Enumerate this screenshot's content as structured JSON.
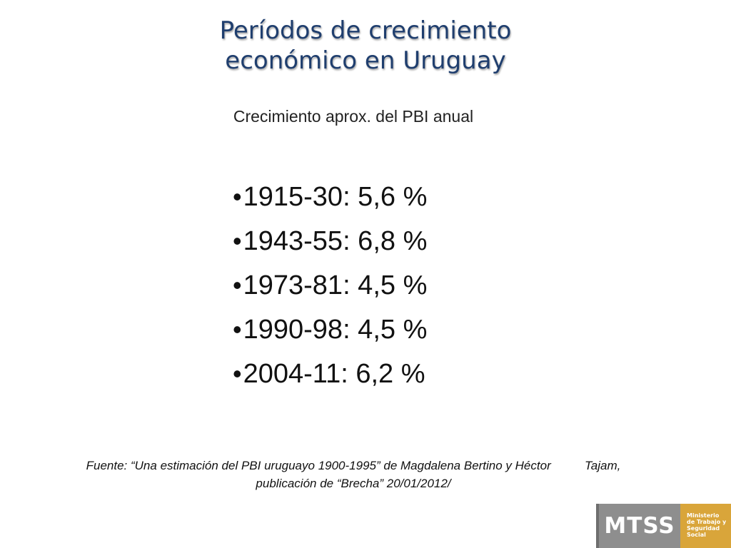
{
  "slide": {
    "title_lines": [
      "Períodos de crecimiento",
      "económico en Uruguay"
    ],
    "subtitle": "Crecimiento aprox. del PBI anual",
    "bullet_symbol": "•",
    "bullets": [
      "1915-30: 5,6 %",
      "1943-55: 6,8 %",
      "1973-81: 4,5 %",
      "1990-98: 4,5 %",
      "2004-11: 6,2 %"
    ],
    "source_lines": [
      "Fuente: “Una estimación del PBI uruguayo 1900-1995” de Magdalena Bertino y Héctor          Tajam,",
      "publicación de “Brecha” 20/01/2012/"
    ],
    "logo": {
      "mark": "MTSS",
      "text_lines": [
        "Ministerio",
        "de Trabajo y",
        "Seguridad",
        "Social"
      ]
    },
    "colors": {
      "title": "#1f3e6e",
      "logo_gray": "#8e8e8e",
      "logo_gold": "#d9a53a"
    }
  }
}
